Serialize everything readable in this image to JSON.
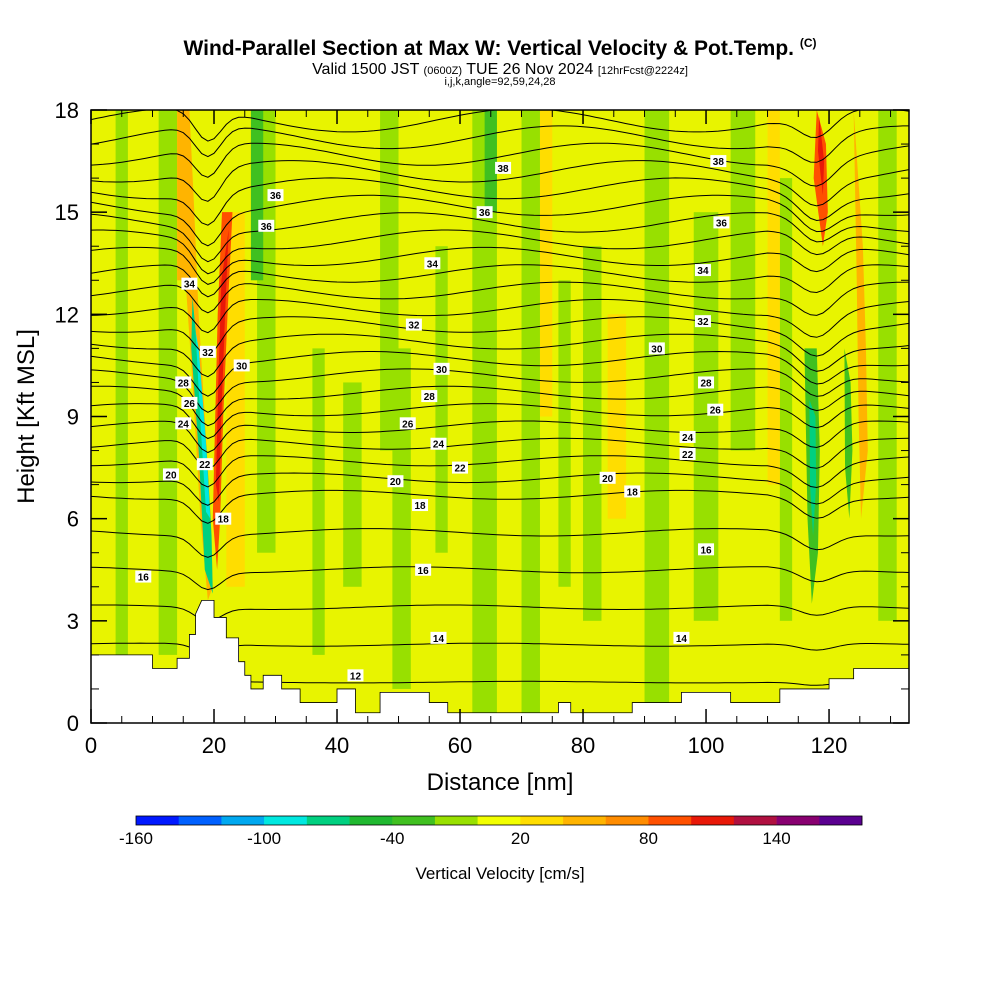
{
  "header": {
    "title": "Wind-Parallel Section at Max W: Vertical Velocity & Pot.Temp.",
    "title_mark": "(C)",
    "valid_prefix": "Valid 1500 JST",
    "valid_utc": "(0600Z)",
    "valid_date": "TUE 26 Nov 2024",
    "forecast_info": "[12hrFcst@2224z]",
    "indices": "i,j,k,angle=92,59,24,28"
  },
  "chart_data": {
    "type": "contour",
    "xlabel": "Distance [nm]",
    "ylabel": "Height [Kft MSL]",
    "xlim": [
      0,
      133
    ],
    "ylim": [
      0,
      18
    ],
    "x_ticks": [
      0,
      20,
      40,
      60,
      80,
      100,
      120
    ],
    "y_ticks": [
      0,
      3,
      6,
      9,
      12,
      15,
      18
    ],
    "fill_variable": "Vertical Velocity",
    "colorbar_label": "Vertical Velocity [cm/s]",
    "colorbar_tick_labels": [
      "-160",
      "-100",
      "-40",
      "20",
      "80",
      "140"
    ],
    "colorbar_colors": [
      "#0018ff",
      "#0060ff",
      "#00a8f0",
      "#00e8e0",
      "#00d080",
      "#20b830",
      "#40c020",
      "#98e000",
      "#f2ff00",
      "#ffdd00",
      "#ffb400",
      "#ff8c00",
      "#ff5000",
      "#e81808",
      "#b01040",
      "#880070",
      "#5a0090"
    ],
    "terrain_profile": [
      [
        0,
        2.0
      ],
      [
        10,
        2.0
      ],
      [
        10,
        1.6
      ],
      [
        14,
        1.6
      ],
      [
        14,
        1.9
      ],
      [
        16,
        1.9
      ],
      [
        16,
        2.6
      ],
      [
        17,
        2.6
      ],
      [
        17,
        3.2
      ],
      [
        18,
        3.6
      ],
      [
        20,
        3.6
      ],
      [
        20,
        3.1
      ],
      [
        22,
        3.1
      ],
      [
        22,
        2.5
      ],
      [
        24,
        2.5
      ],
      [
        24,
        1.8
      ],
      [
        25,
        1.8
      ],
      [
        25,
        1.4
      ],
      [
        26,
        1.4
      ],
      [
        26,
        1.0
      ],
      [
        28,
        1.0
      ],
      [
        28,
        1.4
      ],
      [
        31,
        1.4
      ],
      [
        31,
        1.0
      ],
      [
        34,
        1.0
      ],
      [
        34,
        0.6
      ],
      [
        40,
        0.6
      ],
      [
        40,
        1.0
      ],
      [
        43,
        1.0
      ],
      [
        43,
        0.3
      ],
      [
        47,
        0.3
      ],
      [
        47,
        0.9
      ],
      [
        55,
        0.9
      ],
      [
        55,
        0.6
      ],
      [
        58,
        0.6
      ],
      [
        58,
        0.3
      ],
      [
        76,
        0.3
      ],
      [
        76,
        0.6
      ],
      [
        78,
        0.6
      ],
      [
        78,
        0.3
      ],
      [
        88,
        0.3
      ],
      [
        88,
        0.6
      ],
      [
        96,
        0.6
      ],
      [
        96,
        0.9
      ],
      [
        104,
        0.9
      ],
      [
        104,
        0.6
      ],
      [
        112,
        0.6
      ],
      [
        112,
        1.0
      ],
      [
        120,
        1.0
      ],
      [
        120,
        1.3
      ],
      [
        124,
        1.3
      ],
      [
        124,
        1.6
      ],
      [
        133,
        1.6
      ]
    ],
    "updraft_cores": [
      {
        "x": 21,
        "y_range": [
          4.5,
          15
        ],
        "peak_cms": 140
      },
      {
        "x": 125,
        "y_range": [
          8,
          18
        ],
        "peak_cms": 80
      },
      {
        "x": 118,
        "y_range": [
          14,
          18
        ],
        "peak_cms": 140
      }
    ],
    "downdraft_cores": [
      {
        "x": 18.5,
        "y_range": [
          3.5,
          12
        ],
        "peak_cms": -100
      },
      {
        "x": 117,
        "y_range": [
          4,
          11
        ],
        "peak_cms": -40
      },
      {
        "x": 123,
        "y_range": [
          5,
          10
        ],
        "peak_cms": -40
      }
    ],
    "isentrope_labels": [
      {
        "text": "36",
        "x": 30,
        "y": 15.5
      },
      {
        "text": "36",
        "x": 28.5,
        "y": 14.6
      },
      {
        "text": "34",
        "x": 16,
        "y": 12.9
      },
      {
        "text": "32",
        "x": 19,
        "y": 10.9
      },
      {
        "text": "30",
        "x": 24.5,
        "y": 10.5
      },
      {
        "text": "28",
        "x": 15,
        "y": 10.0
      },
      {
        "text": "26",
        "x": 16,
        "y": 9.4
      },
      {
        "text": "24",
        "x": 15,
        "y": 8.8
      },
      {
        "text": "22",
        "x": 18.5,
        "y": 7.6
      },
      {
        "text": "20",
        "x": 13,
        "y": 7.3
      },
      {
        "text": "18",
        "x": 21.5,
        "y": 6.0
      },
      {
        "text": "16",
        "x": 8.5,
        "y": 4.3
      },
      {
        "text": "38",
        "x": 67,
        "y": 16.3
      },
      {
        "text": "36",
        "x": 64,
        "y": 15.0
      },
      {
        "text": "34",
        "x": 55.5,
        "y": 13.5
      },
      {
        "text": "32",
        "x": 52.5,
        "y": 11.7
      },
      {
        "text": "30",
        "x": 57,
        "y": 10.4
      },
      {
        "text": "28",
        "x": 55,
        "y": 9.6
      },
      {
        "text": "26",
        "x": 51.5,
        "y": 8.8
      },
      {
        "text": "24",
        "x": 56.5,
        "y": 8.2
      },
      {
        "text": "22",
        "x": 60,
        "y": 7.5
      },
      {
        "text": "20",
        "x": 49.5,
        "y": 7.1
      },
      {
        "text": "18",
        "x": 53.5,
        "y": 6.4
      },
      {
        "text": "16",
        "x": 54,
        "y": 4.5
      },
      {
        "text": "14",
        "x": 56.5,
        "y": 2.5
      },
      {
        "text": "12",
        "x": 43,
        "y": 1.4
      },
      {
        "text": "38",
        "x": 102,
        "y": 16.5
      },
      {
        "text": "36",
        "x": 102.5,
        "y": 14.7
      },
      {
        "text": "34",
        "x": 99.5,
        "y": 13.3
      },
      {
        "text": "32",
        "x": 99.5,
        "y": 11.8
      },
      {
        "text": "30",
        "x": 92,
        "y": 11.0
      },
      {
        "text": "28",
        "x": 100,
        "y": 10.0
      },
      {
        "text": "26",
        "x": 101.5,
        "y": 9.2
      },
      {
        "text": "24",
        "x": 97,
        "y": 8.4
      },
      {
        "text": "22",
        "x": 97,
        "y": 7.9
      },
      {
        "text": "20",
        "x": 84,
        "y": 7.2
      },
      {
        "text": "18",
        "x": 88,
        "y": 6.8
      },
      {
        "text": "16",
        "x": 100,
        "y": 5.1
      },
      {
        "text": "14",
        "x": 96,
        "y": 2.5
      }
    ]
  }
}
